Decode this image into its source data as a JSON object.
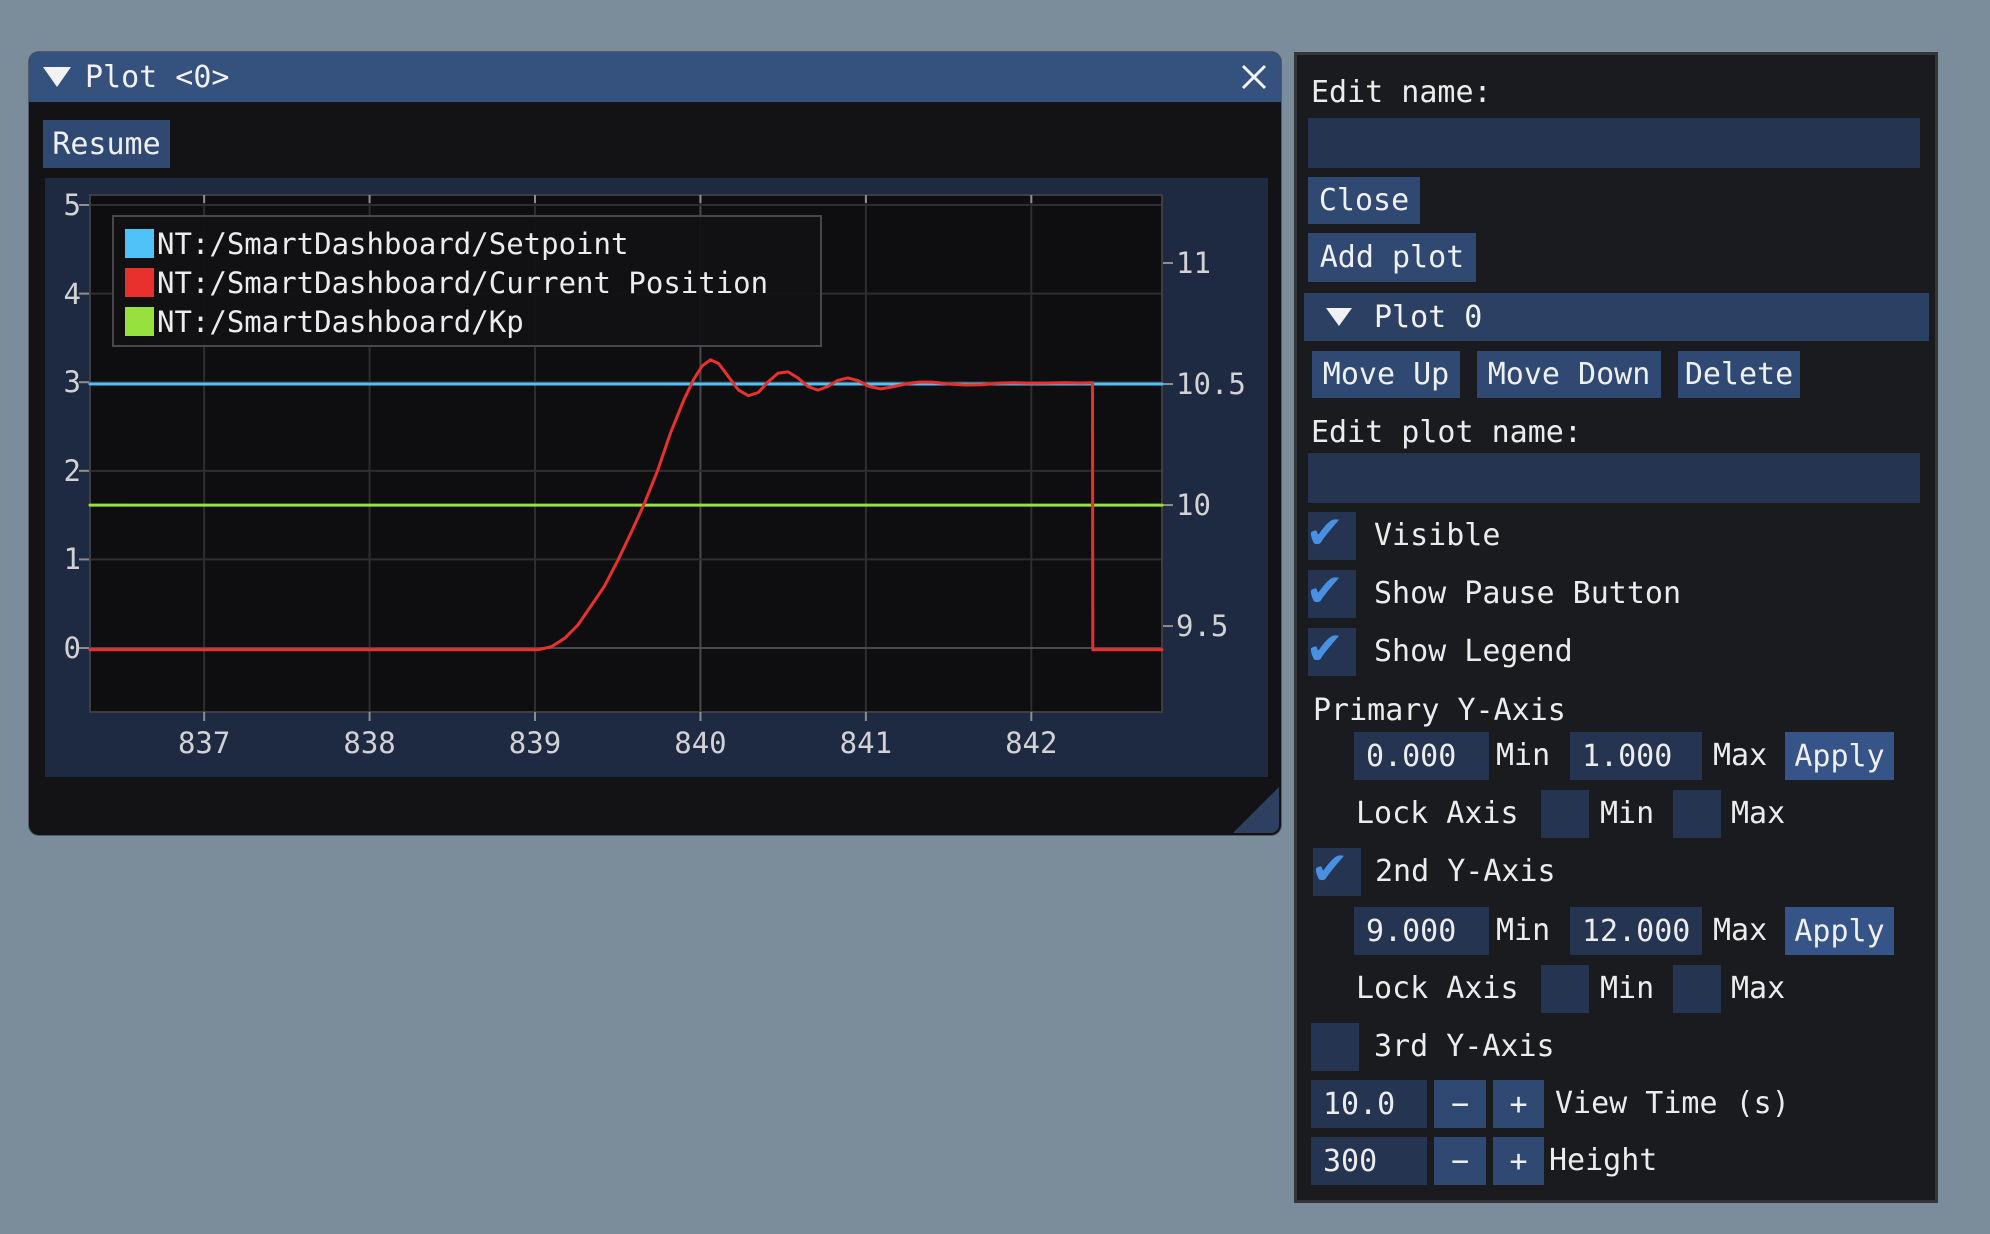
{
  "colors": {
    "background": "#7b8c9b",
    "titlebar": "#35517d",
    "window_body": "#131316",
    "widget_band": "#1e2a42",
    "plot_bg": "#0e0e10",
    "button": "#2f4973",
    "apply_button": "#365487",
    "input": "#253451",
    "check": "#4a90e2",
    "grid": "#2e2e31",
    "grid_bright": "#4a4a4e",
    "plot_border": "#3e3e42",
    "tick_mark": "#8e8e90"
  },
  "plot_window": {
    "title": "Plot <0>",
    "pause_button_label": "Resume",
    "collapse_icon": "triangle-down",
    "close_icon": "x",
    "resize_grip": "bottom-right"
  },
  "chart_data": {
    "type": "line",
    "title": "",
    "xlabel": "",
    "ylabel": "",
    "grid": true,
    "legend_position": "top-left",
    "x": {
      "min": 836.31,
      "max": 842.79,
      "ticks": [
        837,
        838,
        839,
        840,
        841,
        842
      ]
    },
    "y_left": {
      "min": -0.722,
      "max": 5.113,
      "ticks": [
        5,
        4,
        3,
        2,
        1,
        0
      ]
    },
    "y_right": {
      "min": 9.145,
      "max": 11.281,
      "ticks": [
        "11",
        "10.5",
        "10",
        "9.5"
      ],
      "tick_values": [
        11,
        10.5,
        10,
        9.5
      ]
    },
    "series": [
      {
        "name": "NT:/SmartDashboard/Setpoint",
        "color": "#4fc3f7",
        "axis": "right",
        "points": [
          [
            836.31,
            10.5
          ],
          [
            842.79,
            10.5
          ]
        ]
      },
      {
        "name": "NT:/SmartDashboard/Current Position",
        "color": "#e8312d",
        "axis": "right",
        "points": [
          [
            836.31,
            9.402
          ],
          [
            838.9,
            9.402
          ],
          [
            839.02,
            9.402
          ],
          [
            839.1,
            9.415
          ],
          [
            839.18,
            9.45
          ],
          [
            839.26,
            9.505
          ],
          [
            839.34,
            9.585
          ],
          [
            839.42,
            9.665
          ],
          [
            839.5,
            9.77
          ],
          [
            839.58,
            9.885
          ],
          [
            839.66,
            10.005
          ],
          [
            839.74,
            10.14
          ],
          [
            839.82,
            10.3
          ],
          [
            839.9,
            10.435
          ],
          [
            839.96,
            10.52
          ],
          [
            840.01,
            10.575
          ],
          [
            840.06,
            10.6
          ],
          [
            840.11,
            10.585
          ],
          [
            840.17,
            10.53
          ],
          [
            840.23,
            10.475
          ],
          [
            840.29,
            10.452
          ],
          [
            840.35,
            10.465
          ],
          [
            840.41,
            10.51
          ],
          [
            840.47,
            10.545
          ],
          [
            840.53,
            10.55
          ],
          [
            840.59,
            10.525
          ],
          [
            840.65,
            10.49
          ],
          [
            840.71,
            10.475
          ],
          [
            840.77,
            10.49
          ],
          [
            840.83,
            10.515
          ],
          [
            840.89,
            10.525
          ],
          [
            840.95,
            10.515
          ],
          [
            841.02,
            10.49
          ],
          [
            841.09,
            10.48
          ],
          [
            841.16,
            10.488
          ],
          [
            841.24,
            10.5
          ],
          [
            841.32,
            10.508
          ],
          [
            841.4,
            10.508
          ],
          [
            841.5,
            10.5
          ],
          [
            841.6,
            10.496
          ],
          [
            841.7,
            10.497
          ],
          [
            841.8,
            10.503
          ],
          [
            841.9,
            10.505
          ],
          [
            842.0,
            10.503
          ],
          [
            842.1,
            10.504
          ],
          [
            842.2,
            10.505
          ],
          [
            842.3,
            10.504
          ],
          [
            842.37,
            10.505
          ],
          [
            842.372,
            9.402
          ],
          [
            842.79,
            9.402
          ]
        ]
      },
      {
        "name": "NT:/SmartDashboard/Kp",
        "color": "#97e13f",
        "axis": "right",
        "points": [
          [
            836.31,
            10.0
          ],
          [
            842.79,
            10.0
          ]
        ]
      }
    ]
  },
  "panel": {
    "edit_name_label": "Edit name:",
    "edit_name_value": "",
    "close_button": "Close",
    "add_plot_button": "Add plot",
    "plot_section": {
      "header": "Plot 0",
      "move_up": "Move Up",
      "move_down": "Move Down",
      "delete": "Delete",
      "edit_plot_name_label": "Edit plot name:",
      "edit_plot_name_value": "",
      "visible": {
        "label": "Visible",
        "checked": true
      },
      "show_pause": {
        "label": "Show Pause Button",
        "checked": true
      },
      "show_legend": {
        "label": "Show Legend",
        "checked": true
      },
      "primary_axis": {
        "label": "Primary Y-Axis",
        "min_value": "0.000",
        "min_label": "Min",
        "max_value": "1.000",
        "max_label": "Max",
        "apply": "Apply",
        "lock_label": "Lock Axis",
        "lock_min": false,
        "lock_min_label": "Min",
        "lock_max": false,
        "lock_max_label": "Max"
      },
      "second_axis": {
        "label": "2nd Y-Axis",
        "checked": true,
        "min_value": "9.000",
        "min_label": "Min",
        "max_value": "12.000",
        "max_label": "Max",
        "apply": "Apply",
        "lock_label": "Lock Axis",
        "lock_min": false,
        "lock_min_label": "Min",
        "lock_max": false,
        "lock_max_label": "Max"
      },
      "third_axis": {
        "label": "3rd Y-Axis",
        "checked": false
      },
      "view_time": {
        "value": "10.0",
        "minus": "−",
        "plus": "+",
        "label": "View Time (s)"
      },
      "height": {
        "value": "300",
        "minus": "−",
        "plus": "+",
        "label": "Height"
      }
    }
  }
}
